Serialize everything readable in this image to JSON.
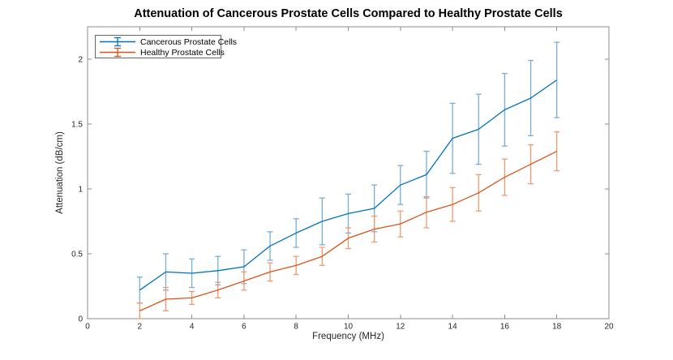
{
  "chart_data": {
    "type": "line",
    "title": "Attenuation of Cancerous Prostate Cells Compared to Healthy Prostate Cells",
    "xlabel": "Frequency (MHz)",
    "ylabel": "Attenuation (dB/cm)",
    "xlim": [
      0,
      20
    ],
    "ylim": [
      0,
      2.25
    ],
    "x_ticks": [
      0,
      2,
      4,
      6,
      8,
      10,
      12,
      14,
      16,
      18,
      20
    ],
    "y_ticks": [
      0,
      0.5,
      1,
      1.5,
      2
    ],
    "grid": false,
    "legend_position": "top-left",
    "x": [
      2,
      3,
      4,
      5,
      6,
      7,
      8,
      9,
      10,
      11,
      12,
      13,
      14,
      15,
      16,
      17,
      18
    ],
    "series": [
      {
        "name": "Cancerous Prostate Cells",
        "color": "#0072BD",
        "errorbar_color": "#74AFDA",
        "values": [
          0.22,
          0.36,
          0.35,
          0.37,
          0.4,
          0.56,
          0.66,
          0.75,
          0.81,
          0.85,
          1.03,
          1.11,
          1.39,
          1.46,
          1.61,
          1.7,
          1.84
        ],
        "errors": [
          0.1,
          0.14,
          0.11,
          0.11,
          0.13,
          0.11,
          0.11,
          0.18,
          0.15,
          0.18,
          0.15,
          0.18,
          0.27,
          0.27,
          0.28,
          0.29,
          0.29
        ]
      },
      {
        "name": "Healthy Prostate Cells",
        "color": "#D95319",
        "errorbar_color": "#EF9A6E",
        "values": [
          0.06,
          0.15,
          0.16,
          0.22,
          0.29,
          0.36,
          0.41,
          0.48,
          0.62,
          0.69,
          0.73,
          0.82,
          0.88,
          0.97,
          1.09,
          1.19,
          1.29
        ],
        "errors": [
          0.06,
          0.09,
          0.05,
          0.06,
          0.07,
          0.07,
          0.07,
          0.07,
          0.08,
          0.1,
          0.1,
          0.12,
          0.13,
          0.14,
          0.14,
          0.15,
          0.15
        ]
      }
    ]
  },
  "style_colors": {
    "axis": "#8c8c8c",
    "tick_label": "#262626",
    "title": "#000000"
  }
}
